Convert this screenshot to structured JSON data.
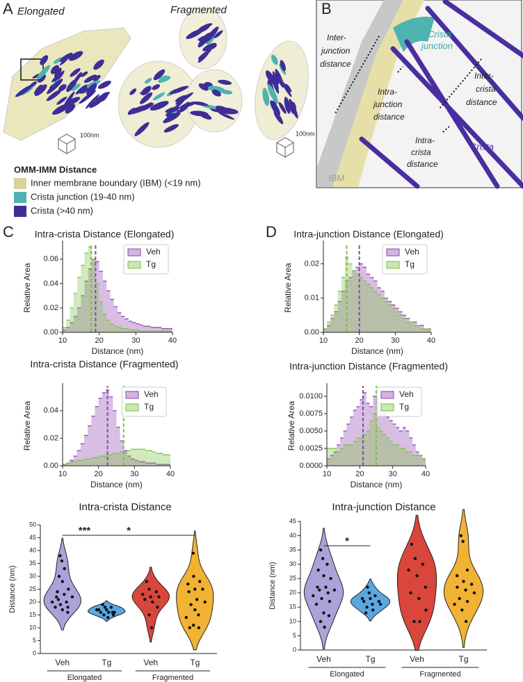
{
  "figure": {
    "panel_labels": [
      "A",
      "B",
      "C",
      "D"
    ],
    "panel_a": {
      "titles": [
        "Elongated",
        "Fragmented"
      ],
      "scale_bars": [
        "100nm",
        "100nm"
      ]
    },
    "legend": {
      "title": "OMM-IMM Distance",
      "items": [
        {
          "label": "Inner membrane boundary (IBM) (<19 nm)",
          "color": "#d9d39a"
        },
        {
          "label": "Crista junction (19-40 nm)",
          "color": "#4fb3b0"
        },
        {
          "label": "Crista (>40 nm)",
          "color": "#3d2d96"
        }
      ]
    },
    "panel_b": {
      "labels": [
        {
          "lines": [
            "Inter-",
            "junction",
            "distance"
          ]
        },
        {
          "lines": [
            "Crista",
            "junction"
          ]
        },
        {
          "lines": [
            "Intra-",
            "junction",
            "distance"
          ]
        },
        {
          "lines": [
            "Inter-",
            "crista",
            "distance"
          ]
        },
        {
          "lines": [
            "Intra-",
            "crista",
            "distance"
          ]
        },
        {
          "lines": [
            "Crista"
          ]
        },
        {
          "lines": [
            "IBM"
          ]
        }
      ]
    }
  },
  "chart_data": [
    {
      "type": "histogram",
      "title": "Intra-crista Distance (Elongated)",
      "xlabel": "Distance (nm)",
      "ylabel": "Relative Area",
      "bins": [
        10,
        11,
        12,
        13,
        14,
        15,
        16,
        17,
        18,
        19,
        20,
        21,
        22,
        23,
        24,
        25,
        26,
        27,
        28,
        29,
        30,
        31,
        32,
        33,
        34,
        35,
        36,
        37,
        38,
        39,
        40
      ],
      "xlim": [
        10,
        40
      ],
      "xticks": [
        10,
        20,
        30,
        40
      ],
      "ylim": [
        0,
        0.073
      ],
      "yticks": [
        {
          "value": 0,
          "label": "0.00"
        },
        0.02,
        0.04,
        0.06
      ],
      "legend": "upper right",
      "series": [
        {
          "name": "Veh",
          "color": "#8e44ad",
          "median": 19,
          "values": [
            0.002,
            0.004,
            0.008,
            0.013,
            0.02,
            0.03,
            0.042,
            0.052,
            0.06,
            0.058,
            0.05,
            0.042,
            0.034,
            0.027,
            0.021,
            0.016,
            0.013,
            0.011,
            0.009,
            0.008,
            0.007,
            0.006,
            0.005,
            0.005,
            0.004,
            0.004,
            0.004,
            0.003,
            0.003,
            0.003
          ]
        },
        {
          "name": "Tg",
          "color": "#7cc242",
          "median": 17.8,
          "values": [
            0.004,
            0.01,
            0.02,
            0.032,
            0.045,
            0.055,
            0.065,
            0.07,
            0.06,
            0.04,
            0.025,
            0.015,
            0.01,
            0.007,
            0.005,
            0.004,
            0.003,
            0.003,
            0.002,
            0.002,
            0.002,
            0.001,
            0.001,
            0.001,
            0.001,
            0.001,
            0.001,
            0.001,
            0.001,
            0.001
          ]
        }
      ]
    },
    {
      "type": "histogram",
      "title": "Intra-crista Distance (Fragmented)",
      "xlabel": "Distance (nm)",
      "ylabel": "Relative Area",
      "bins": [
        10,
        11,
        12,
        13,
        14,
        15,
        16,
        17,
        18,
        19,
        20,
        21,
        22,
        23,
        24,
        25,
        26,
        27,
        28,
        29,
        30,
        31,
        32,
        33,
        34,
        35,
        36,
        37,
        38,
        39,
        40
      ],
      "xlim": [
        10,
        40
      ],
      "xticks": [
        10,
        20,
        30,
        40
      ],
      "ylim": [
        0,
        0.058
      ],
      "yticks": [
        {
          "value": 0,
          "label": "0.00"
        },
        0.02,
        0.04
      ],
      "legend": "upper right",
      "series": [
        {
          "name": "Veh",
          "color": "#8e44ad",
          "median": 22.5,
          "values": [
            0.001,
            0.002,
            0.004,
            0.007,
            0.011,
            0.016,
            0.022,
            0.029,
            0.036,
            0.043,
            0.049,
            0.053,
            0.055,
            0.05,
            0.04,
            0.028,
            0.018,
            0.011,
            0.007,
            0.005,
            0.004,
            0.003,
            0.003,
            0.002,
            0.002,
            0.002,
            0.001,
            0.001,
            0.001,
            0.001
          ]
        },
        {
          "name": "Tg",
          "color": "#7cc242",
          "median": 27,
          "values": [
            0.001,
            0.002,
            0.003,
            0.003,
            0.004,
            0.004,
            0.005,
            0.005,
            0.006,
            0.006,
            0.007,
            0.007,
            0.008,
            0.008,
            0.009,
            0.009,
            0.01,
            0.01,
            0.011,
            0.012,
            0.012,
            0.012,
            0.012,
            0.011,
            0.011,
            0.01,
            0.009,
            0.009,
            0.008,
            0.008
          ]
        }
      ]
    },
    {
      "type": "histogram",
      "title": "Intra-junction Distance (Elongated)",
      "xlabel": "Distance (nm)",
      "ylabel": "Relative Area",
      "bins": [
        10,
        11,
        12,
        13,
        14,
        15,
        16,
        17,
        18,
        19,
        20,
        21,
        22,
        23,
        24,
        25,
        26,
        27,
        28,
        29,
        30,
        31,
        32,
        33,
        34,
        35,
        36,
        37,
        38,
        39,
        40
      ],
      "xlim": [
        10,
        40
      ],
      "xticks": [
        10,
        20,
        30,
        40
      ],
      "ylim": [
        0,
        0.026
      ],
      "yticks": [
        {
          "value": 0,
          "label": "0.00"
        },
        0.01,
        0.02
      ],
      "legend": "upper right",
      "series": [
        {
          "name": "Veh",
          "color": "#8e44ad",
          "median": 20,
          "values": [
            0.001,
            0.002,
            0.004,
            0.006,
            0.009,
            0.012,
            0.015,
            0.016,
            0.018,
            0.019,
            0.02,
            0.019,
            0.017,
            0.016,
            0.015,
            0.013,
            0.012,
            0.01,
            0.009,
            0.008,
            0.007,
            0.006,
            0.005,
            0.004,
            0.003,
            0.003,
            0.002,
            0.002,
            0.001,
            0.001
          ]
        },
        {
          "name": "Tg",
          "color": "#7cc242",
          "median": 16.5,
          "values": [
            0.001,
            0.003,
            0.005,
            0.008,
            0.012,
            0.016,
            0.022,
            0.02,
            0.018,
            0.017,
            0.016,
            0.015,
            0.014,
            0.013,
            0.012,
            0.011,
            0.01,
            0.009,
            0.008,
            0.007,
            0.006,
            0.005,
            0.004,
            0.003,
            0.003,
            0.002,
            0.002,
            0.001,
            0.001,
            0.001
          ]
        }
      ]
    },
    {
      "type": "histogram",
      "title": "Intra-junction Distance (Fragmented)",
      "xlabel": "Distance (nm)",
      "ylabel": "Relative Area",
      "bins": [
        10,
        11,
        12,
        13,
        14,
        15,
        16,
        17,
        18,
        19,
        20,
        21,
        22,
        23,
        24,
        25,
        26,
        27,
        28,
        29,
        30,
        31,
        32,
        33,
        34,
        35,
        36,
        37,
        38,
        39,
        40
      ],
      "xlim": [
        10,
        40
      ],
      "xticks": [
        10,
        20,
        30,
        40
      ],
      "ylim": [
        0,
        0.0115
      ],
      "yticks": [
        {
          "value": 0,
          "label": "0.0000"
        },
        0.0025,
        {
          "value": 0.005,
          "label": "0.0050"
        },
        0.0075,
        {
          "value": 0.01,
          "label": "0.0100"
        }
      ],
      "legend": "upper right",
      "series": [
        {
          "name": "Veh",
          "color": "#8e44ad",
          "median": 21,
          "values": [
            0.001,
            0.0015,
            0.002,
            0.003,
            0.004,
            0.005,
            0.006,
            0.007,
            0.008,
            0.0085,
            0.0095,
            0.0105,
            0.009,
            0.0085,
            0.01,
            0.0095,
            0.009,
            0.0075,
            0.007,
            0.0065,
            0.006,
            0.0055,
            0.005,
            0.0055,
            0.005,
            0.004,
            0.003,
            0.002,
            0.0015,
            0.001
          ]
        },
        {
          "name": "Tg",
          "color": "#7cc242",
          "median": 25,
          "values": [
            0.0025,
            0.0025,
            0.0025,
            0.002,
            0.0025,
            0.003,
            0.003,
            0.003,
            0.0035,
            0.004,
            0.004,
            0.0045,
            0.005,
            0.0065,
            0.0075,
            0.0055,
            0.005,
            0.0045,
            0.004,
            0.0035,
            0.003,
            0.003,
            0.0025,
            0.0025,
            0.002,
            0.002,
            0.0015,
            0.0015,
            0.0015,
            0.001
          ]
        }
      ]
    },
    {
      "type": "violin",
      "title": "Intra-crista Distance",
      "ylabel": "Distance (nm)",
      "categories": [
        "Veh",
        "Tg",
        "Veh",
        "Tg"
      ],
      "groups": [
        "Elongated",
        "Fragmented"
      ],
      "ylim": [
        0,
        50
      ],
      "yticks": [
        0,
        5,
        10,
        15,
        20,
        25,
        30,
        35,
        40,
        45,
        50
      ],
      "series": [
        {
          "color": "#a9a3d9",
          "values": [
            38,
            36,
            33,
            30,
            28,
            25,
            24,
            23,
            22,
            21,
            20,
            20,
            19,
            18,
            18,
            17,
            16,
            22
          ]
        },
        {
          "color": "#5aa7e2",
          "values": [
            19,
            18,
            18,
            17,
            17,
            16,
            16,
            16,
            15,
            15,
            14,
            17,
            18,
            16
          ]
        },
        {
          "color": "#d9463b",
          "values": [
            28,
            25,
            24,
            23,
            22,
            22,
            21,
            20,
            18,
            15,
            10
          ]
        },
        {
          "color": "#f2b233",
          "values": [
            39,
            30,
            28,
            27,
            25,
            25,
            24,
            21,
            20,
            19,
            15,
            14,
            11,
            10,
            10,
            17
          ]
        }
      ],
      "annotations": [
        {
          "text": "***",
          "between": [
            0,
            1
          ]
        },
        {
          "text": "*",
          "between": [
            0,
            3
          ]
        }
      ]
    },
    {
      "type": "violin",
      "title": "Intra-junction Distance",
      "ylabel": "Distance (nm)",
      "categories": [
        "Veh",
        "Tg",
        "Veh",
        "Tg"
      ],
      "groups": [
        "Elongated",
        "Fragmented"
      ],
      "ylim": [
        0,
        45
      ],
      "yticks": [
        0,
        5,
        10,
        15,
        20,
        25,
        30,
        35,
        40,
        45
      ],
      "series": [
        {
          "color": "#a9a3d9",
          "values": [
            35,
            32,
            30,
            28,
            26,
            25,
            22,
            22,
            21,
            21,
            20,
            19,
            18,
            17,
            16,
            13,
            12,
            10,
            8
          ]
        },
        {
          "color": "#5aa7e2",
          "values": [
            22,
            20,
            19,
            18,
            18,
            17,
            17,
            16,
            16,
            15,
            14,
            13
          ]
        },
        {
          "color": "#d9463b",
          "values": [
            37,
            32,
            30,
            28,
            26,
            22,
            20,
            18,
            14,
            10,
            10
          ]
        },
        {
          "color": "#f2b233",
          "values": [
            40,
            38,
            28,
            26,
            24,
            23,
            22,
            21,
            20,
            18,
            17,
            16,
            14,
            10
          ]
        }
      ],
      "annotations": [
        {
          "text": "*",
          "between": [
            0,
            1
          ]
        }
      ]
    }
  ]
}
